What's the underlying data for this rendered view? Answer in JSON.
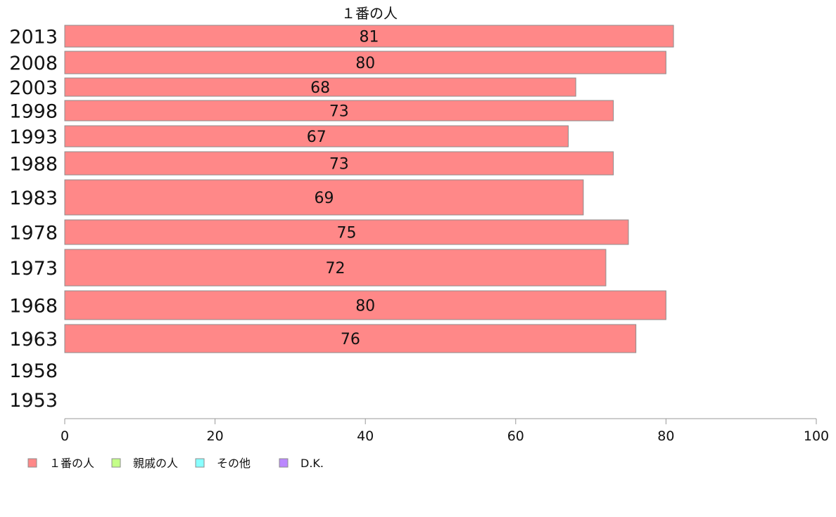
{
  "chart_data": {
    "type": "bar",
    "orientation": "horizontal",
    "stacked": true,
    "title": "",
    "xlim": [
      0,
      100
    ],
    "x_ticks": [
      0,
      20,
      40,
      60,
      80,
      100
    ],
    "grid": false,
    "legend_position": "bottom-left",
    "categories": [
      "2013",
      "2008",
      "2003",
      "1998",
      "1993",
      "1988",
      "1983",
      "1978",
      "1973",
      "1968",
      "1963",
      "1958",
      "1953"
    ],
    "series": [
      {
        "name": "１番の人",
        "color": "#ff8888",
        "values": [
          81,
          80,
          68,
          73,
          67,
          73,
          69,
          75,
          72,
          80,
          76,
          null,
          null
        ],
        "data_labels": [
          "81",
          "80",
          "68",
          "73",
          "67",
          "73",
          "69",
          "75",
          "72",
          "80",
          "76",
          "",
          ""
        ]
      },
      {
        "name": "親戚の人",
        "color": "#c4ff88",
        "values": [
          null,
          null,
          null,
          null,
          null,
          null,
          null,
          null,
          null,
          null,
          null,
          null,
          null
        ]
      },
      {
        "name": "その他",
        "color": "#88ffff",
        "values": [
          null,
          null,
          null,
          null,
          null,
          null,
          null,
          null,
          null,
          null,
          null,
          null,
          null
        ]
      },
      {
        "name": "D.K.",
        "color": "#bb88ff",
        "values": [
          null,
          null,
          null,
          null,
          null,
          null,
          null,
          null,
          null,
          null,
          null,
          null,
          null
        ]
      }
    ],
    "visible_series_header": "１番の人"
  }
}
